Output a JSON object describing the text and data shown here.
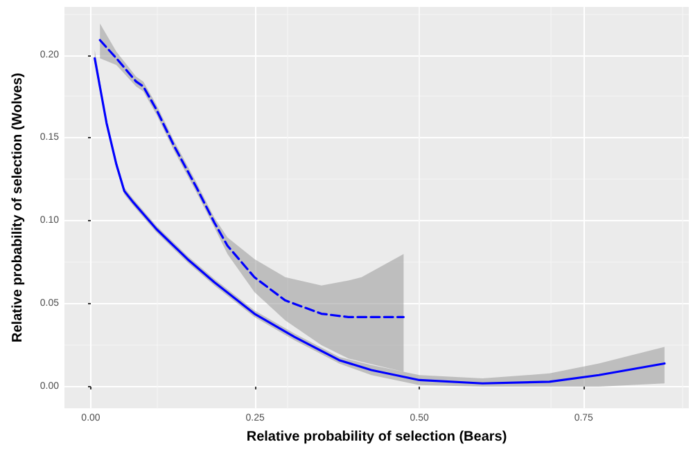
{
  "chart_data": {
    "type": "line",
    "xlabel": "Relative probability of selection (Bears)",
    "ylabel": "Relative probability of selection (Wolves)",
    "grid": true,
    "marker": "none",
    "xlim": [
      -0.04,
      0.91
    ],
    "xticks": [
      {
        "value": 0,
        "label": "0.00"
      },
      {
        "value": 0.25,
        "label": "0.25"
      },
      {
        "value": 0.5,
        "label": "0.50"
      },
      {
        "value": 0.75,
        "label": "0.75"
      }
    ],
    "ylim": [
      -0.013,
      0.229
    ],
    "yticks": [
      {
        "value": 0,
        "label": "0.00"
      },
      {
        "value": 0.05,
        "label": "0.05"
      },
      {
        "value": 0.1,
        "label": "0.10"
      },
      {
        "value": 0.15,
        "label": "0.15"
      },
      {
        "value": 0.2,
        "label": "0.20"
      }
    ],
    "series": [
      {
        "color": "#0000ff",
        "line_style": "solid",
        "x": [
          0.006,
          0.024,
          0.039,
          0.051,
          0.065,
          0.1,
          0.147,
          0.188,
          0.249,
          0.31,
          0.378,
          0.427,
          0.5,
          0.596,
          0.698,
          0.773,
          0.873
        ],
        "values": [
          0.198,
          0.159,
          0.134,
          0.118,
          0.111,
          0.095,
          0.077,
          0.063,
          0.044,
          0.03,
          0.016,
          0.01,
          0.004,
          0.002,
          0.003,
          0.007,
          0.014
        ],
        "lower": [
          0.195,
          0.157,
          0.132,
          0.116,
          0.109,
          0.093,
          0.075,
          0.061,
          0.042,
          0.028,
          0.014,
          0.007,
          0.001,
          0.0,
          0.0,
          0.0,
          0.002
        ],
        "upper": [
          0.203,
          0.161,
          0.136,
          0.12,
          0.113,
          0.097,
          0.079,
          0.065,
          0.046,
          0.032,
          0.018,
          0.013,
          0.007,
          0.005,
          0.008,
          0.014,
          0.024
        ]
      },
      {
        "color": "#0000ff",
        "line_style": "dashed",
        "x": [
          0.014,
          0.039,
          0.069,
          0.08,
          0.1,
          0.127,
          0.161,
          0.188,
          0.208,
          0.249,
          0.296,
          0.351,
          0.392,
          0.412,
          0.476
        ],
        "values": [
          0.209,
          0.198,
          0.184,
          0.181,
          0.167,
          0.145,
          0.12,
          0.099,
          0.085,
          0.066,
          0.052,
          0.044,
          0.042,
          0.042,
          0.042
        ],
        "lower": [
          0.198,
          0.194,
          0.181,
          0.178,
          0.164,
          0.142,
          0.117,
          0.096,
          0.08,
          0.057,
          0.04,
          0.025,
          0.017,
          0.015,
          0.009
        ],
        "upper": [
          0.219,
          0.202,
          0.187,
          0.184,
          0.17,
          0.148,
          0.123,
          0.102,
          0.09,
          0.077,
          0.066,
          0.061,
          0.064,
          0.066,
          0.08
        ]
      }
    ]
  }
}
